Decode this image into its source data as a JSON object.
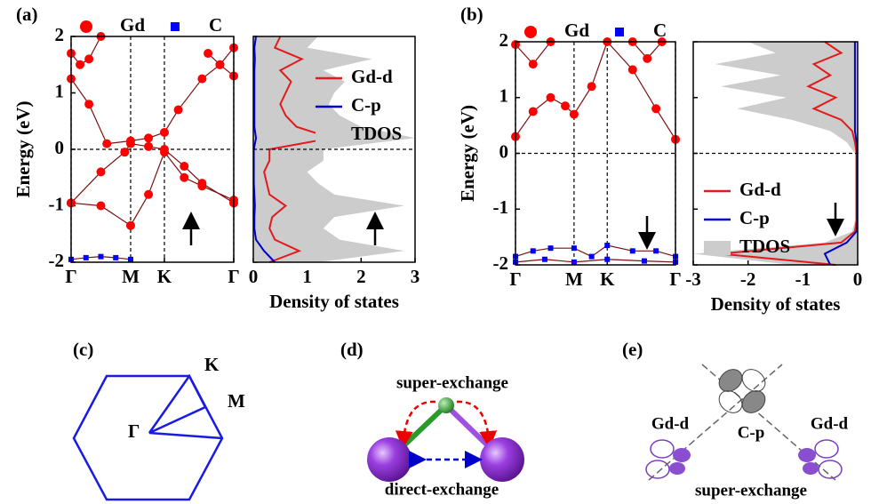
{
  "chart_data": [
    {
      "type": "band",
      "panel": "(a)",
      "ylabel": "Energy (eV)",
      "xlim": [
        0,
        2.732
      ],
      "xticks": [
        {
          "value": 0,
          "label": "Γ"
        },
        {
          "value": 1,
          "label": "M"
        },
        {
          "value": 1.567,
          "label": "K"
        },
        {
          "value": 2.732,
          "label": "Γ"
        }
      ],
      "ylim": [
        -2,
        2
      ],
      "yticks": [
        -2,
        -1,
        0,
        1,
        2
      ],
      "grid_x": true,
      "reference_lines": {
        "y": 0
      },
      "series": [
        {
          "name": "Gd",
          "color": "#ff0000",
          "marker": "circle",
          "bands": [
            {
              "x": [
                0,
                0.5,
                1,
                1.3,
                1.567,
                1.9,
                2.2,
                2.732
              ],
              "values": [
                -0.95,
                -1.0,
                -1.35,
                -0.8,
                -0.05,
                -0.5,
                -0.65,
                -0.9
              ]
            },
            {
              "x": [
                0,
                0.5,
                0.9,
                1,
                1.3,
                1.567,
                1.9,
                2.2,
                2.732
              ],
              "values": [
                -0.95,
                -0.4,
                -0.05,
                0.1,
                0.05,
                0.0,
                -0.3,
                -0.6,
                -0.95
              ]
            },
            {
              "x": [
                0,
                0.3,
                0.6,
                1,
                1.3,
                1.567,
                1.8,
                2.2,
                2.5,
                2.732
              ],
              "values": [
                1.25,
                0.8,
                0.1,
                0.15,
                0.2,
                0.3,
                0.7,
                1.25,
                1.5,
                1.3
              ]
            },
            {
              "x": [
                0,
                0.15,
                0.3,
                0.5
              ],
              "values": [
                1.7,
                1.5,
                1.6,
                2.0
              ]
            },
            {
              "x": [
                2.3,
                2.5,
                2.732
              ],
              "values": [
                1.7,
                1.5,
                1.8
              ]
            }
          ]
        },
        {
          "name": "C",
          "color": "#0000ff",
          "marker": "square",
          "bands": [
            {
              "x": [
                0,
                0.25,
                0.5,
                0.75,
                1
              ],
              "values": [
                -1.95,
                -1.92,
                -1.9,
                -1.92,
                -1.95
              ]
            }
          ]
        }
      ]
    },
    {
      "type": "dos",
      "xlabel": "Density of states",
      "xlim": [
        0,
        3
      ],
      "xticks": [
        0,
        1,
        2,
        3
      ],
      "ylim": [
        -2,
        2
      ],
      "yticks": [
        -2,
        -1,
        0,
        1,
        2
      ],
      "reference_lines": {
        "y": 0
      },
      "legend": "upper right",
      "energy": [
        -2,
        -1.8,
        -1.6,
        -1.4,
        -1.2,
        -1,
        -0.8,
        -0.6,
        -0.4,
        -0.2,
        0,
        0.2,
        0.4,
        0.6,
        0.8,
        1,
        1.2,
        1.4,
        1.6,
        1.8,
        2
      ],
      "series": [
        {
          "name": "Gd-d",
          "color": "#e31a1c",
          "values": [
            0.3,
            0.85,
            0.4,
            0.3,
            0.35,
            0.6,
            0.3,
            0.25,
            0.2,
            0.3,
            0.3,
            1.45,
            0.8,
            0.6,
            0.5,
            0.6,
            0.7,
            0.5,
            0.9,
            0.4,
            0.5
          ]
        },
        {
          "name": "C-p",
          "color": "#0000cc",
          "values": [
            0.4,
            0.2,
            0.05,
            0.02,
            0.02,
            0.03,
            0.02,
            0.01,
            0.01,
            0.01,
            0.01,
            0.05,
            0.02,
            0.02,
            0.02,
            0.02,
            0.02,
            0.02,
            0.03,
            0.02,
            0.05
          ]
        },
        {
          "name": "TDOS",
          "color": "#cccccc",
          "fill": true,
          "values": [
            1.2,
            2.8,
            1.6,
            1.3,
            1.5,
            2.8,
            1.5,
            1.2,
            1.0,
            1.3,
            1.3,
            3.0,
            2.0,
            1.6,
            1.4,
            1.5,
            1.7,
            1.3,
            2.2,
            1.0,
            1.2
          ]
        }
      ]
    },
    {
      "type": "band",
      "panel": "(b)",
      "ylabel": "Energy (eV)",
      "xlim": [
        0,
        2.732
      ],
      "xticks": [
        {
          "value": 0,
          "label": "Γ"
        },
        {
          "value": 1,
          "label": "M"
        },
        {
          "value": 1.567,
          "label": "K"
        },
        {
          "value": 2.732,
          "label": "Γ"
        }
      ],
      "ylim": [
        -2,
        2
      ],
      "yticks": [
        -2,
        -1,
        0,
        1,
        2
      ],
      "grid_x": true,
      "reference_lines": {
        "y": 0
      },
      "series": [
        {
          "name": "Gd",
          "color": "#ff0000",
          "marker": "circle",
          "bands": [
            {
              "x": [
                0,
                0.3,
                0.6,
                0.85,
                1,
                1.3,
                1.567,
                2.0,
                2.4,
                2.732
              ],
              "values": [
                0.3,
                0.75,
                1.0,
                0.85,
                0.7,
                1.2,
                2.0,
                1.5,
                0.8,
                0.25
              ]
            },
            {
              "x": [
                0,
                0.3,
                0.6
              ],
              "values": [
                1.95,
                1.6,
                2.0
              ]
            },
            {
              "x": [
                2.0,
                2.25,
                2.5
              ],
              "values": [
                2.0,
                1.7,
                2.0
              ]
            }
          ]
        },
        {
          "name": "C",
          "color": "#0000ff",
          "marker": "square",
          "bands": [
            {
              "x": [
                0,
                0.3,
                0.6,
                1,
                1.3,
                1.567,
                2.0,
                2.4,
                2.732
              ],
              "values": [
                -1.85,
                -1.75,
                -1.7,
                -1.7,
                -1.85,
                -1.65,
                -1.75,
                -1.75,
                -1.85
              ]
            },
            {
              "x": [
                0,
                0.5,
                1,
                1.567,
                2.2,
                2.732
              ],
              "values": [
                -1.95,
                -1.9,
                -1.95,
                -1.9,
                -1.93,
                -1.95
              ]
            }
          ]
        }
      ]
    },
    {
      "type": "dos",
      "xlabel": "Density of states",
      "xlim": [
        -3,
        0
      ],
      "xticks": [
        -3,
        -2,
        -1,
        0
      ],
      "ylim": [
        -2,
        2
      ],
      "yticks": [
        -2,
        -1,
        0,
        1,
        2
      ],
      "reference_lines": {
        "y": 0
      },
      "legend": "lower left",
      "energy": [
        -2,
        -1.8,
        -1.6,
        -1.4,
        -1.2,
        -1,
        -0.8,
        -0.6,
        -0.4,
        -0.2,
        0,
        0.2,
        0.4,
        0.6,
        0.8,
        1,
        1.2,
        1.4,
        1.6,
        1.8,
        2
      ],
      "series": [
        {
          "name": "Gd-d",
          "color": "#e31a1c",
          "values": [
            -0.4,
            -2.5,
            -0.3,
            -0.05,
            -0.02,
            -0.02,
            -0.02,
            -0.02,
            -0.02,
            -0.02,
            -0.02,
            -0.05,
            -0.1,
            -0.3,
            -0.8,
            -0.4,
            -0.9,
            -0.5,
            -0.8,
            -0.3,
            -0.6
          ]
        },
        {
          "name": "C-p",
          "color": "#0000cc",
          "values": [
            -0.5,
            -0.6,
            -0.2,
            -0.02,
            -0.01,
            -0.01,
            -0.01,
            -0.01,
            -0.01,
            -0.01,
            -0.01,
            -0.02,
            -0.05,
            -0.05,
            -0.05,
            -0.05,
            -0.05,
            -0.05,
            -0.05,
            -0.05,
            -0.05
          ]
        },
        {
          "name": "TDOS",
          "color": "#cccccc",
          "fill": true,
          "values": [
            -1.2,
            -3.0,
            -0.6,
            -0.1,
            -0.05,
            -0.05,
            -0.05,
            -0.05,
            -0.05,
            -0.05,
            -0.05,
            -0.2,
            -0.5,
            -1.2,
            -2.2,
            -1.3,
            -2.5,
            -1.4,
            -2.6,
            -1.5,
            -2.0
          ]
        }
      ]
    }
  ],
  "diagrams": {
    "c": {
      "label": "(c)",
      "points": [
        "K",
        "M",
        "Γ"
      ]
    },
    "d": {
      "label": "(d)",
      "top": "super-exchange",
      "bottom": "direct-exchange"
    },
    "e": {
      "label": "(e)",
      "left": "Gd-d",
      "center": "C-p",
      "right": "Gd-d",
      "bottom": "super-exchange"
    }
  }
}
